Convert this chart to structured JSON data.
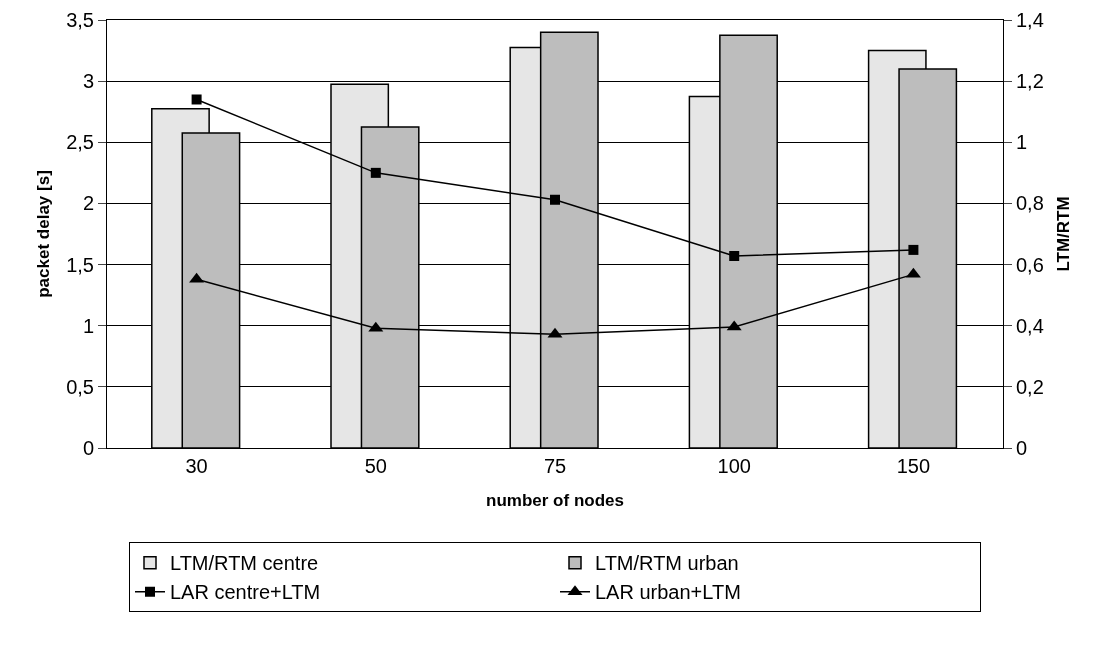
{
  "chart_data": {
    "type": "bar",
    "xlabel": "number of nodes",
    "ylabel": "packet delay [s]",
    "y2label": "LTM/RTM",
    "categories": [
      "30",
      "50",
      "75",
      "100",
      "150"
    ],
    "series": [
      {
        "name": "LTM/RTM centre",
        "axis": "y2",
        "color": "#e6e6e6",
        "values": [
          1.11,
          1.19,
          1.31,
          1.15,
          1.3
        ]
      },
      {
        "name": "LTM/RTM urban",
        "axis": "y2",
        "color": "#bdbdbd",
        "values": [
          1.03,
          1.05,
          1.36,
          1.35,
          1.24
        ]
      },
      {
        "name": "LAR centre+LTM",
        "type": "line",
        "marker": "square",
        "color": "#000000",
        "values": [
          2.85,
          2.25,
          2.03,
          1.57,
          1.62
        ]
      },
      {
        "name": "LAR urban+LTM",
        "type": "line",
        "marker": "triangle",
        "color": "#000000",
        "values": [
          1.38,
          0.98,
          0.93,
          0.99,
          1.42
        ]
      }
    ],
    "ylim": [
      0,
      3.5
    ],
    "yticks": [
      0,
      {
        "value": 0.5,
        "label": "0,5"
      },
      1,
      {
        "value": 1.5,
        "label": "1,5"
      },
      2,
      {
        "value": 2.5,
        "label": "2,5"
      },
      3,
      {
        "value": 3.5,
        "label": "3,5"
      }
    ],
    "y2lim": [
      0,
      1.4
    ],
    "y2ticks": [
      0,
      {
        "value": 0.2,
        "label": "0,2"
      },
      {
        "value": 0.4,
        "label": "0,4"
      },
      {
        "value": 0.6,
        "label": "0,6"
      },
      {
        "value": 0.8,
        "label": "0,8"
      },
      1,
      {
        "value": 1.2,
        "label": "1,2"
      },
      {
        "value": 1.4,
        "label": "1,4"
      }
    ],
    "grid": "y",
    "legend": "bottom"
  }
}
